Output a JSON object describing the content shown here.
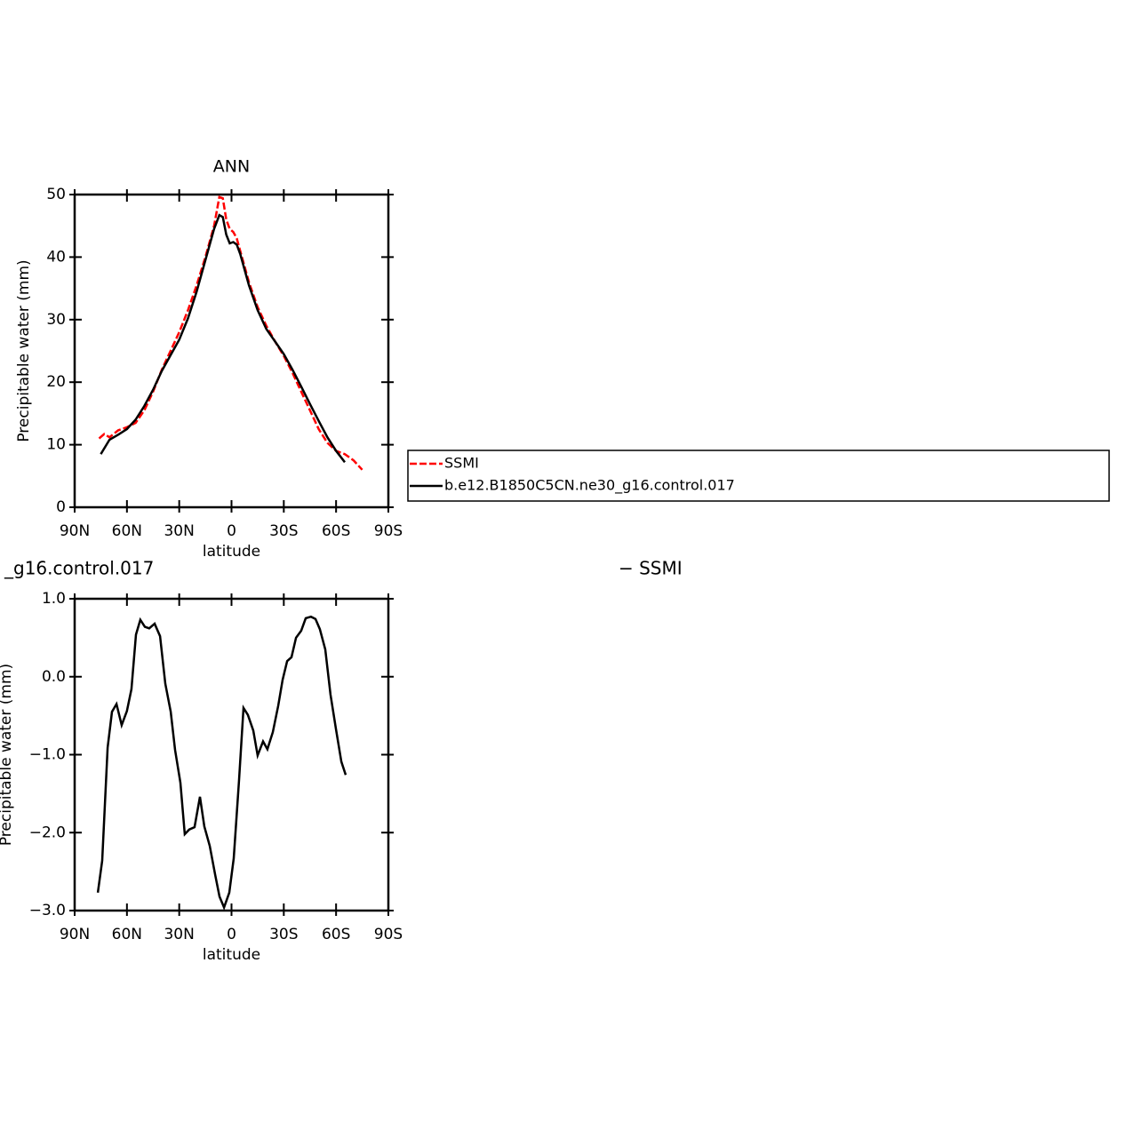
{
  "chart_data": [
    {
      "type": "line",
      "title": "ANN",
      "xlabel": "latitude",
      "ylabel": "Precipitable water (mm)",
      "xlim": [
        90,
        -90
      ],
      "xticks": [
        {
          "value": 90,
          "label": "90N"
        },
        {
          "value": 60,
          "label": "60N"
        },
        {
          "value": 30,
          "label": "30N"
        },
        0,
        {
          "value": -30,
          "label": "30S"
        },
        {
          "value": -60,
          "label": "60S"
        },
        {
          "value": -90,
          "label": "90S"
        }
      ],
      "ylim": [
        0,
        50
      ],
      "yticks": [
        0,
        10,
        20,
        30,
        40,
        50
      ],
      "legend": "right",
      "series": [
        {
          "name": "SSMI",
          "color": "#ff0000",
          "line_style": "dashed",
          "x": [
            76,
            73,
            70,
            65,
            60,
            55,
            50,
            45,
            40,
            35,
            30,
            25,
            20,
            15,
            10,
            7,
            5,
            3,
            1,
            -1,
            -3,
            -5,
            -10,
            -15,
            -20,
            -25,
            -30,
            -35,
            -40,
            -45,
            -50,
            -55,
            -60,
            -65,
            -70,
            -75
          ],
          "values": [
            11.0,
            11.7,
            11.2,
            12.3,
            12.8,
            13.5,
            15.5,
            18.5,
            22.0,
            25.0,
            28.0,
            31.5,
            35.5,
            40.0,
            45.0,
            49.6,
            49.4,
            46.0,
            44.5,
            44.0,
            43.0,
            41.0,
            36.0,
            32.0,
            29.0,
            26.5,
            24.2,
            21.5,
            18.5,
            15.5,
            12.5,
            10.3,
            9.0,
            8.5,
            7.5,
            6.0
          ]
        },
        {
          "name": "b.e12.B1850C5CN.ne30_g16.control.017",
          "color": "#000000",
          "line_style": "solid",
          "x": [
            75,
            70,
            65,
            60,
            55,
            50,
            45,
            40,
            35,
            30,
            25,
            20,
            15,
            10,
            7,
            5,
            3,
            1,
            -1,
            -3,
            -5,
            -10,
            -15,
            -20,
            -25,
            -30,
            -35,
            -40,
            -45,
            -50,
            -55,
            -60,
            -65
          ],
          "values": [
            8.5,
            10.8,
            11.6,
            12.5,
            14.0,
            16.2,
            18.8,
            21.8,
            24.3,
            26.8,
            30.2,
            34.5,
            39.5,
            44.5,
            46.7,
            46.4,
            43.6,
            42.2,
            42.4,
            42.0,
            40.5,
            35.5,
            31.5,
            28.5,
            26.5,
            24.5,
            22.0,
            19.3,
            16.5,
            13.8,
            11.2,
            9.0,
            7.2
          ]
        }
      ]
    },
    {
      "type": "line",
      "title": "_g16.control.017",
      "title_right": "− SSMI",
      "xlabel": "latitude",
      "ylabel": "Precipitable water (mm)",
      "xlim": [
        90,
        -90
      ],
      "xticks": [
        {
          "value": 90,
          "label": "90N"
        },
        {
          "value": 60,
          "label": "60N"
        },
        {
          "value": 30,
          "label": "30N"
        },
        0,
        {
          "value": -30,
          "label": "30S"
        },
        {
          "value": -60,
          "label": "60S"
        },
        {
          "value": -90,
          "label": "90S"
        }
      ],
      "ylim": [
        -3,
        1
      ],
      "yticks": [
        {
          "value": 1,
          "label": "1.0"
        },
        {
          "value": 0,
          "label": "0.0"
        },
        {
          "value": -1,
          "label": "−1.0"
        },
        {
          "value": -2,
          "label": "−2.0"
        },
        {
          "value": -3,
          "label": "−3.0"
        }
      ],
      "series": [
        {
          "color": "#000000",
          "line_style": "solid",
          "x": [
            76.7,
            74.2,
            71.1,
            68.6,
            66.0,
            63.0,
            60.0,
            57.4,
            54.8,
            52.3,
            49.7,
            47.2,
            44.1,
            41.0,
            38.0,
            34.9,
            32.4,
            29.3,
            26.8,
            24.2,
            21.2,
            18.1,
            15.6,
            12.5,
            9.4,
            6.9,
            4.3,
            1.3,
            -1.3,
            -4.3,
            -6.9,
            -9.4,
            -12.5,
            -15.0,
            -18.1,
            -20.6,
            -23.7,
            -26.8,
            -29.3,
            -31.9,
            -34.4,
            -37.0,
            -40.0,
            -42.6,
            -45.6,
            -48.2,
            -50.7,
            -53.8,
            -56.8,
            -59.9,
            -63.0,
            -65.5
          ],
          "values": [
            -2.77,
            -2.36,
            -0.91,
            -0.45,
            -0.35,
            -0.62,
            -0.44,
            -0.16,
            0.54,
            0.73,
            0.64,
            0.62,
            0.68,
            0.52,
            -0.09,
            -0.45,
            -0.94,
            -1.36,
            -2.02,
            -1.96,
            -1.93,
            -1.54,
            -1.92,
            -2.17,
            -2.54,
            -2.82,
            -2.96,
            -2.77,
            -2.33,
            -1.34,
            -0.4,
            -0.49,
            -0.69,
            -1.01,
            -0.83,
            -0.93,
            -0.71,
            -0.37,
            -0.04,
            0.2,
            0.25,
            0.5,
            0.59,
            0.75,
            0.77,
            0.74,
            0.61,
            0.35,
            -0.23,
            -0.67,
            -1.09,
            -1.26
          ]
        }
      ]
    }
  ]
}
